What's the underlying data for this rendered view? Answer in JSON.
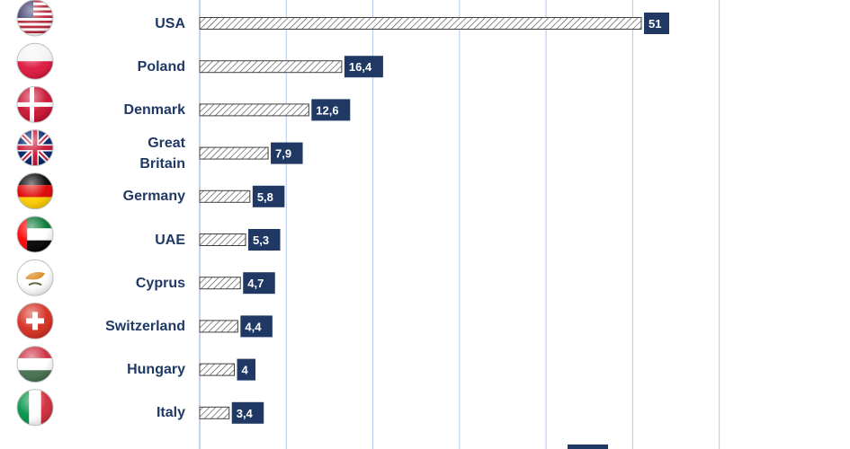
{
  "chart_data": {
    "type": "bar",
    "orientation": "horizontal",
    "categories": [
      "USA",
      "Poland",
      "Denmark",
      "Great Britain",
      "Germany",
      "UAE",
      "Cyprus",
      "Switzerland",
      "Hungary",
      "Italy"
    ],
    "category_lines": [
      [
        "USA"
      ],
      [
        "Poland"
      ],
      [
        "Denmark"
      ],
      [
        "Great",
        "Britain"
      ],
      [
        "Germany"
      ],
      [
        "UAE"
      ],
      [
        "Cyprus"
      ],
      [
        "Switzerland"
      ],
      [
        "Hungary"
      ],
      [
        "Italy"
      ]
    ],
    "values": [
      51,
      16.4,
      12.6,
      7.9,
      5.8,
      5.3,
      4.7,
      4.4,
      4,
      3.4
    ],
    "value_labels": [
      "51",
      "16,4",
      "12,6",
      "7,9",
      "5,8",
      "5,3",
      "4,7",
      "4,4",
      "4",
      "3,4"
    ],
    "flag_icons": [
      "usa-flag-icon",
      "poland-flag-icon",
      "denmark-flag-icon",
      "great-britain-flag-icon",
      "germany-flag-icon",
      "uae-flag-icon",
      "cyprus-flag-icon",
      "switzerland-flag-icon",
      "hungary-flag-icon",
      "italy-flag-icon"
    ],
    "xlim": [
      0,
      60
    ],
    "grid": true,
    "colors": {
      "label_text": "#1f3864",
      "value_box": "#1f3864",
      "bar_hatch": "#404040",
      "gridline": "#b4c7e7"
    }
  }
}
